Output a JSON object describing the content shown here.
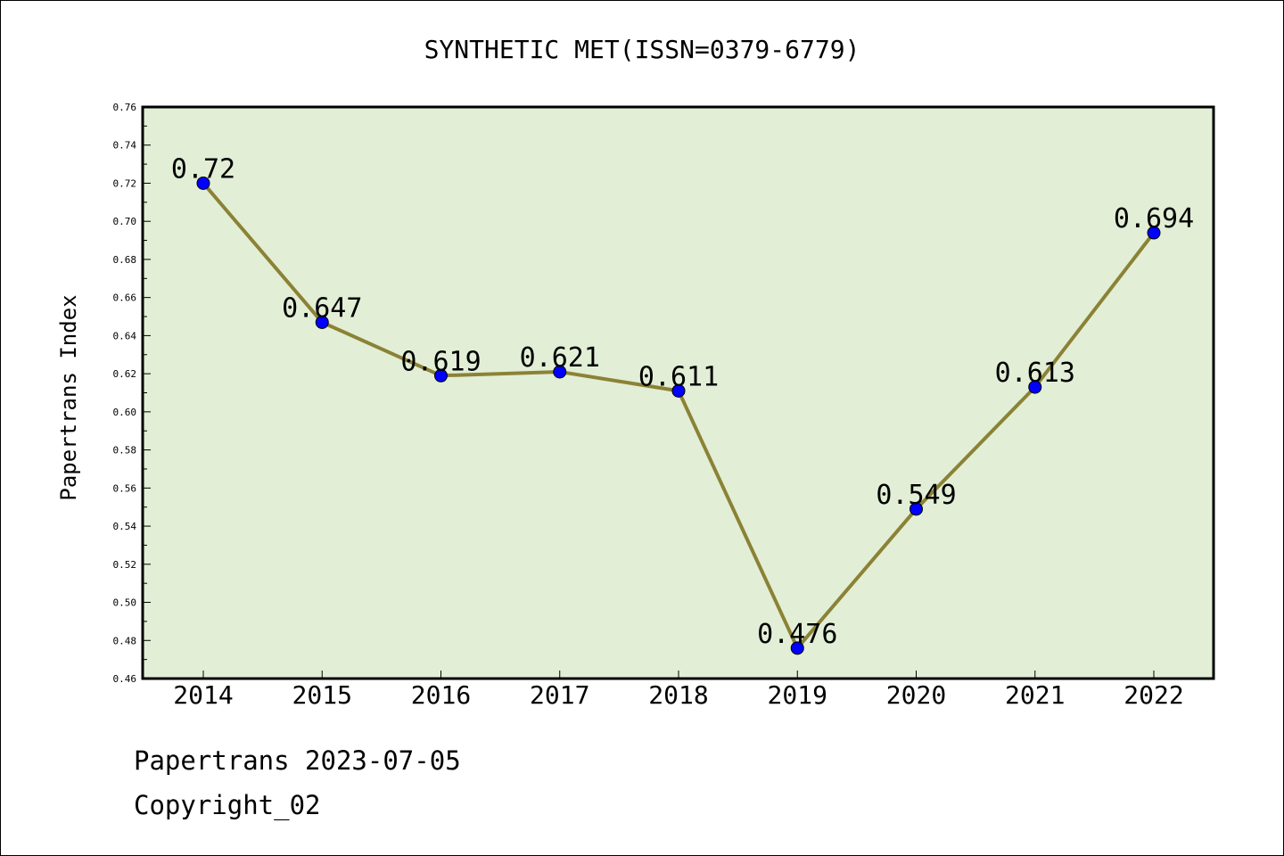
{
  "chart_data": {
    "type": "line",
    "title": "SYNTHETIC MET(ISSN=0379-6779)",
    "xlabel": "",
    "ylabel": "Papertrans Index",
    "categories": [
      "2014",
      "2015",
      "2016",
      "2017",
      "2018",
      "2019",
      "2020",
      "2021",
      "2022"
    ],
    "values": [
      0.72,
      0.647,
      0.619,
      0.621,
      0.611,
      0.476,
      0.549,
      0.613,
      0.694
    ],
    "value_labels": [
      "0.72",
      "0.647",
      "0.619",
      "0.621",
      "0.611",
      "0.476",
      "0.549",
      "0.613",
      "0.694"
    ],
    "ylim": [
      0.46,
      0.76
    ],
    "yticks": [
      "0.46",
      "0.48",
      "0.50",
      "0.52",
      "0.54",
      "0.56",
      "0.58",
      "0.60",
      "0.62",
      "0.64",
      "0.66",
      "0.68",
      "0.70",
      "0.72",
      "0.74",
      "0.76"
    ],
    "grid": false,
    "colors": {
      "plot_background": "#e2efd6",
      "line": "#8b8236",
      "marker": "#0000ff"
    }
  },
  "footer": {
    "date_line": "Papertrans 2023-07-05",
    "copyright": "Copyright_02"
  }
}
